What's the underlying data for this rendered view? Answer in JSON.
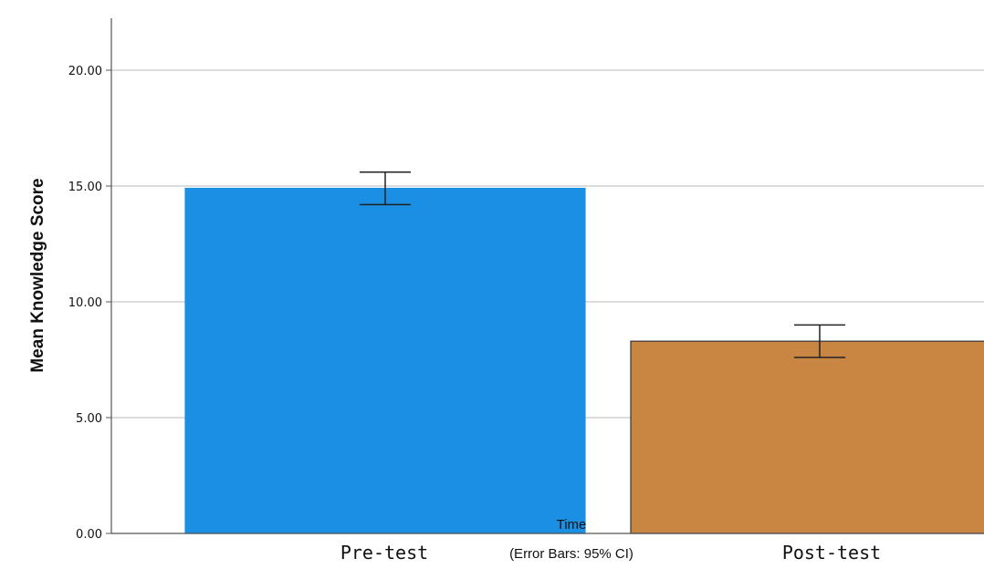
{
  "chart_data": {
    "type": "bar",
    "categories": [
      "Pre-test",
      "Post-test"
    ],
    "values": [
      14.9,
      8.3
    ],
    "error_bars": {
      "lower": [
        14.2,
        7.6
      ],
      "upper": [
        15.6,
        9.0
      ]
    },
    "ylabel": "Mean Knowledge Score",
    "xlabel": "Time",
    "note": "(Error Bars: 95% CI)",
    "ylim": [
      0,
      22
    ],
    "yticks": [
      0,
      5,
      10,
      15,
      20
    ],
    "ytick_labels": [
      "0.00",
      "5.00",
      "10.00",
      "15.00",
      "20.00"
    ],
    "grid": true,
    "colors": [
      "#1a8fe3",
      "#c98642"
    ],
    "edge_colors": [
      "#1a8fe3",
      "#333333"
    ]
  }
}
